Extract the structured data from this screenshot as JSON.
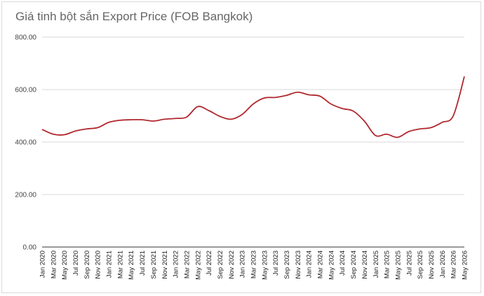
{
  "chart_data": {
    "type": "line",
    "title": "Giá tinh bột sắn Export Price (FOB Bangkok)",
    "xlabel": "",
    "ylabel": "",
    "ylim": [
      0,
      800
    ],
    "yticks": [
      "0.00",
      "200.00",
      "400.00",
      "600.00",
      "800.00"
    ],
    "grid": true,
    "legend": "none",
    "line_color": "#b0282d",
    "grid_color": "#d9d9d9",
    "x": [
      "Jan 2020",
      "Mar 2020",
      "May 2020",
      "Jul 2020",
      "Sep 2020",
      "Nov 2020",
      "Jan 2021",
      "Mar 2021",
      "May 2021",
      "Jul 2021",
      "Sep 2021",
      "Nov 2021",
      "Jan 2022",
      "Mar 2022",
      "May 2022",
      "Jul 2022",
      "Sep 2022",
      "Nov 2022",
      "Jan 2023",
      "Mar 2023",
      "May 2023",
      "Jul 2023",
      "Sep 2023",
      "Nov 2023",
      "Jan 2024",
      "Mar 2024",
      "May 2024",
      "Jul 2024",
      "Sep 2024",
      "Nov 2024",
      "Jan 2025",
      "Mar 2025",
      "May 2025",
      "Jul 2025",
      "Sep 2025",
      "Nov 2025",
      "Jan 2026",
      "Mar 2026",
      "May 2026"
    ],
    "series": [
      {
        "values": [
          448,
          430,
          428,
          442,
          450,
          455,
          475,
          483,
          485,
          485,
          480,
          487,
          490,
          495,
          535,
          520,
          498,
          487,
          505,
          545,
          568,
          570,
          578,
          590,
          580,
          575,
          545,
          528,
          518,
          480,
          425,
          430,
          418,
          440,
          450,
          455,
          475,
          500,
          650
        ]
      }
    ]
  }
}
